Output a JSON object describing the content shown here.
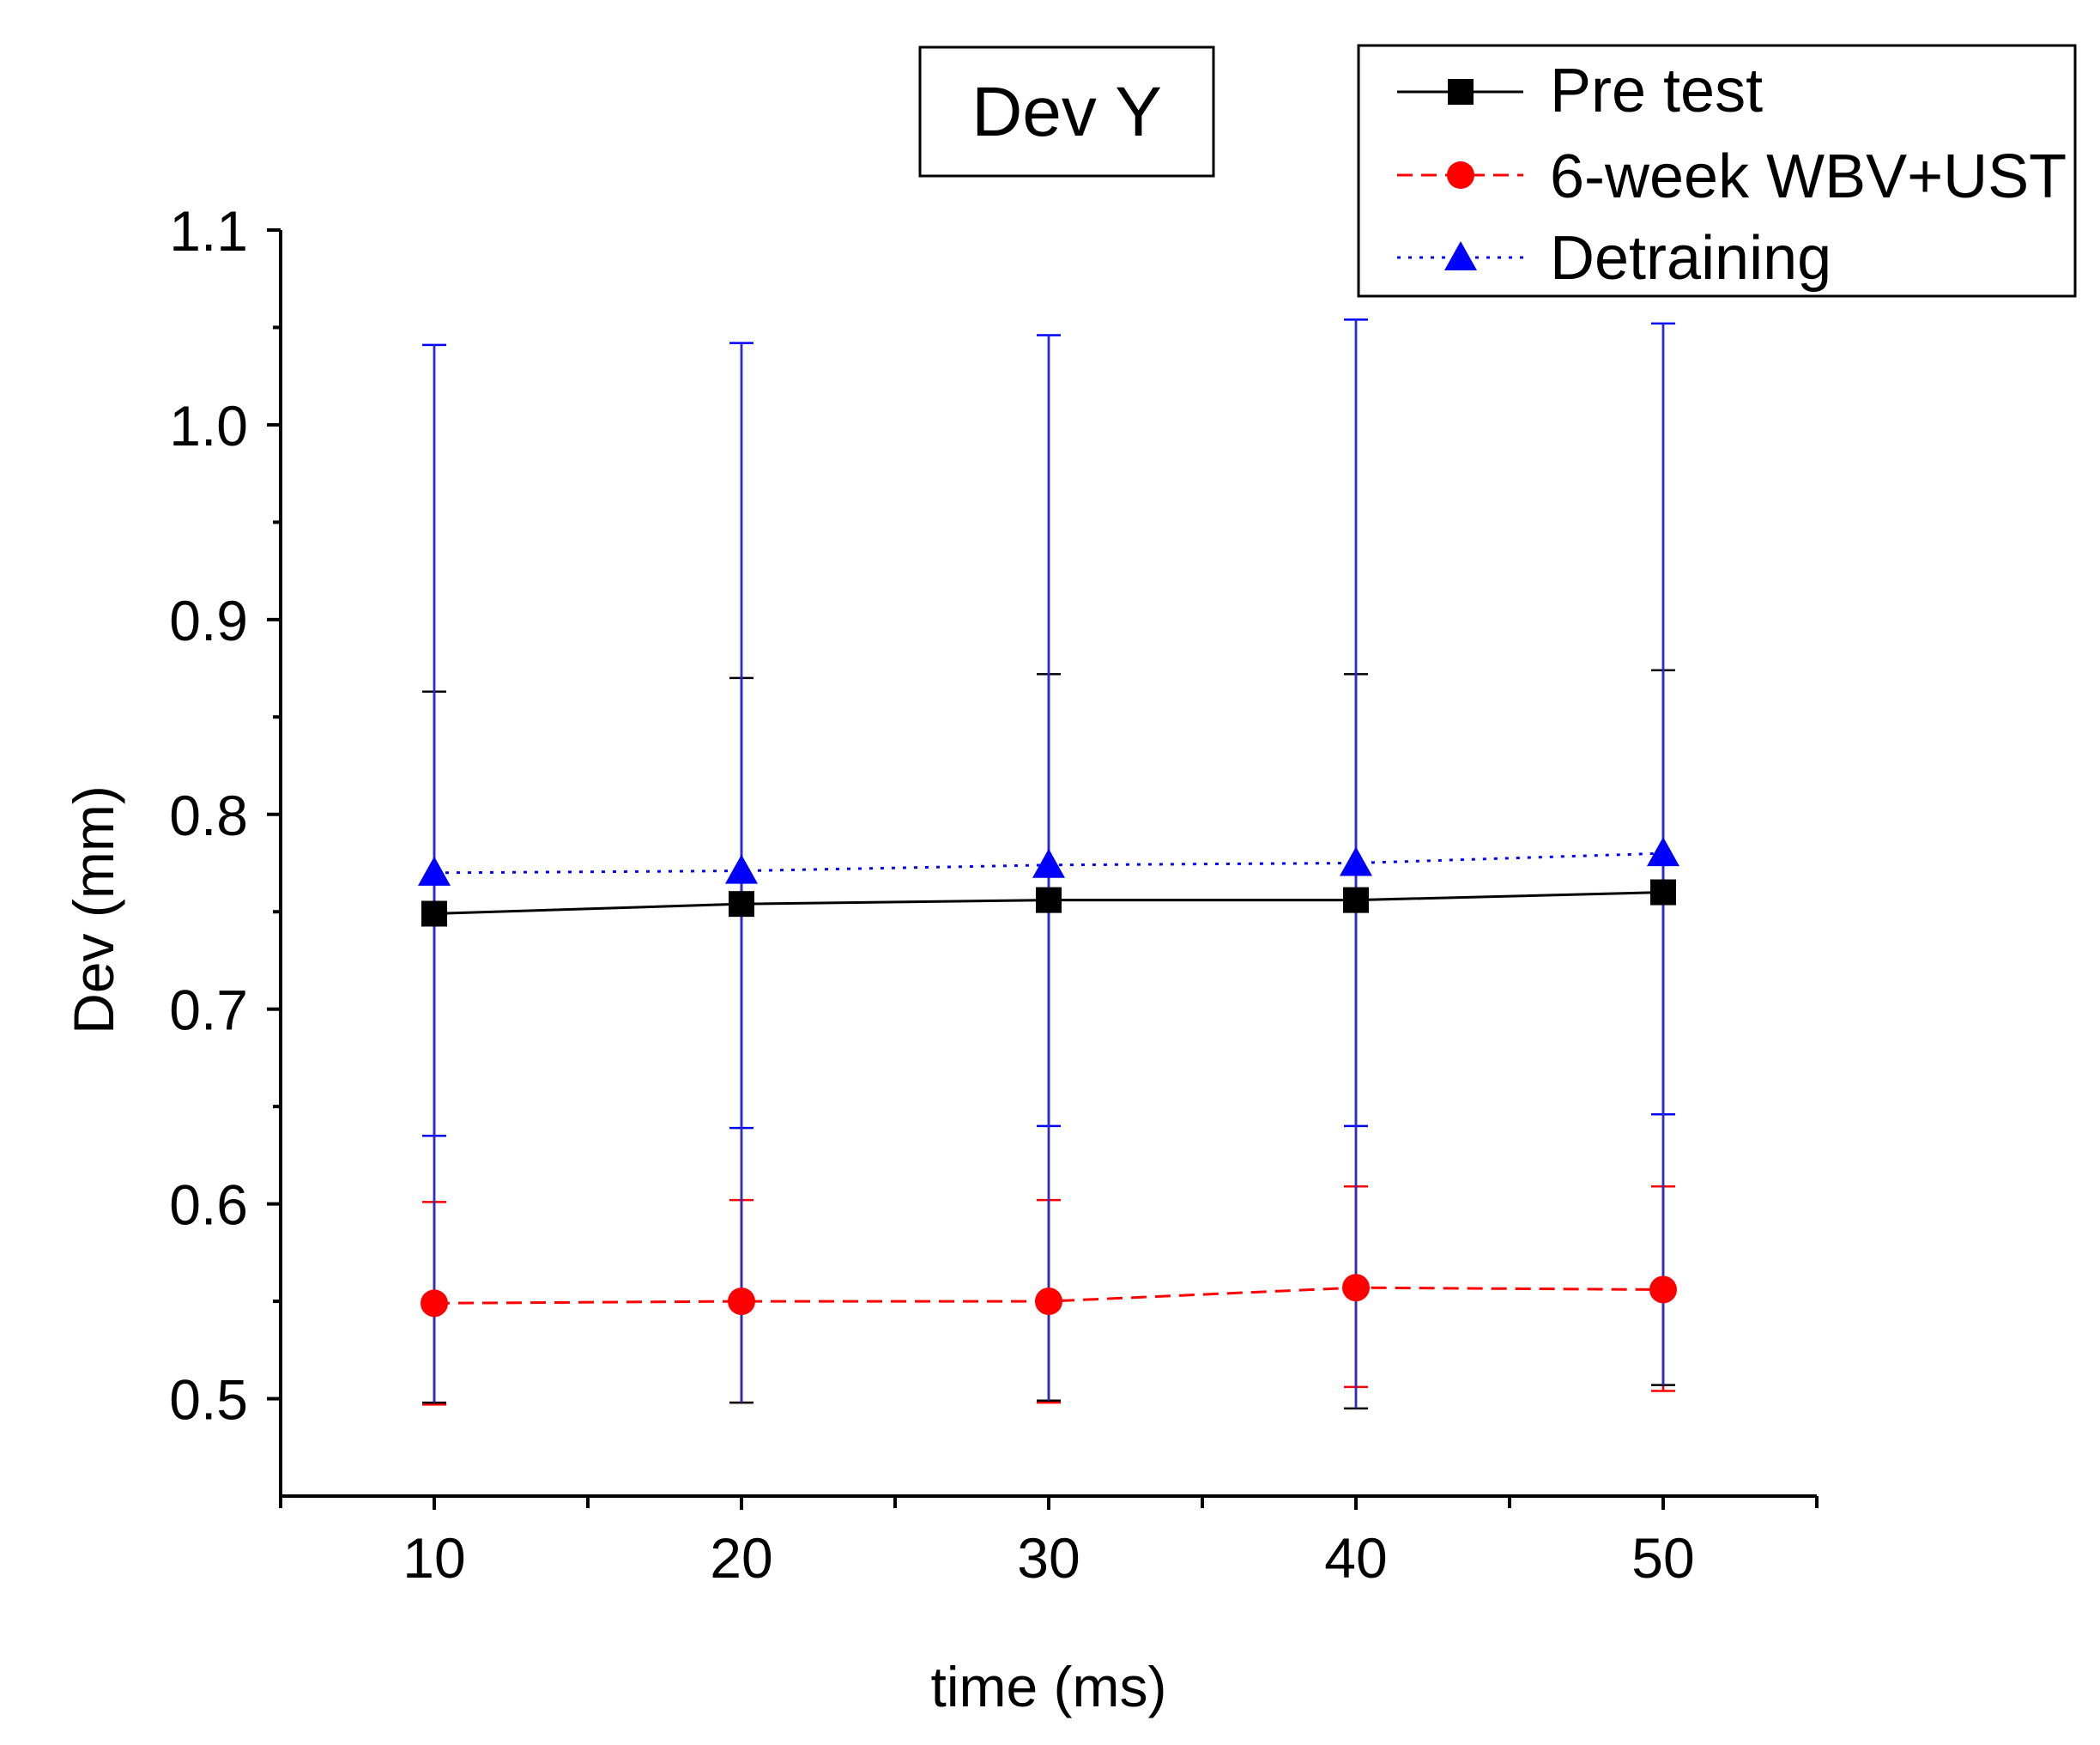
{
  "chart_data": {
    "type": "line",
    "title": "Dev Y",
    "xlabel": "time (ms)",
    "ylabel": "Dev (mm)",
    "x": [
      10,
      20,
      30,
      40,
      50
    ],
    "xlim": [
      5,
      55
    ],
    "ylim": [
      0.45,
      1.1
    ],
    "xticks": [
      10,
      20,
      30,
      40,
      50
    ],
    "xtick_labels": [
      "10",
      "20",
      "30",
      "40",
      "50"
    ],
    "yticks": [
      0.5,
      0.6,
      0.7,
      0.8,
      0.9,
      1.0,
      1.1
    ],
    "ytick_labels": [
      "0.5",
      "0.6",
      "0.7",
      "0.8",
      "0.9",
      "1.0",
      "1.1"
    ],
    "grid": false,
    "legend_position": "top-right",
    "series": [
      {
        "name": "Pre test",
        "color": "#000000",
        "line_style": "solid",
        "marker": "square",
        "values": [
          0.749,
          0.754,
          0.756,
          0.756,
          0.76
        ],
        "error_low": [
          0.498,
          0.498,
          0.499,
          0.495,
          0.507
        ],
        "error_high": [
          0.863,
          0.87,
          0.872,
          0.872,
          0.874
        ]
      },
      {
        "name": "6-week WBV+UST",
        "color": "#ff0000",
        "line_style": "dashed",
        "marker": "circle",
        "values": [
          0.549,
          0.55,
          0.55,
          0.557,
          0.556
        ],
        "error_low": [
          0.497,
          0.498,
          0.498,
          0.506,
          0.504
        ],
        "error_high": [
          0.601,
          0.602,
          0.602,
          0.609,
          0.609
        ]
      },
      {
        "name": "Detraining",
        "color": "#0000ff",
        "line_style": "dotted",
        "marker": "triangle",
        "values": [
          0.77,
          0.771,
          0.774,
          0.775,
          0.78
        ],
        "error_low": [
          0.635,
          0.639,
          0.64,
          0.64,
          0.646
        ],
        "error_high": [
          1.041,
          1.042,
          1.046,
          1.054,
          1.052
        ]
      }
    ]
  }
}
